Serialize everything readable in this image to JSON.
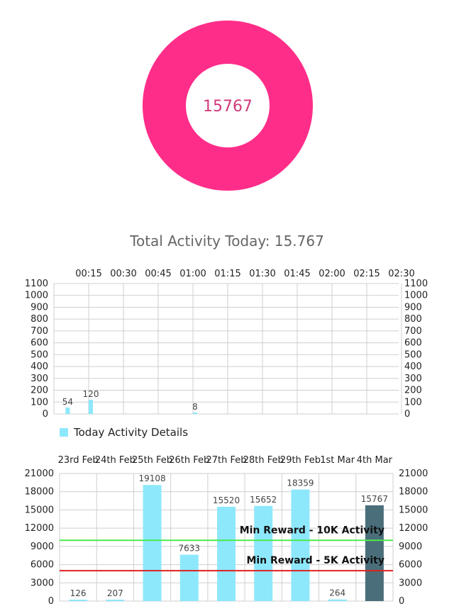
{
  "donut": {
    "value": "15767",
    "color": "#ff2d8a",
    "text_color": "#d03a7a"
  },
  "summary": {
    "total_text": "Total Activity Today: 15.767"
  },
  "chart_data": [
    {
      "type": "bar",
      "x": [
        "00:15",
        "00:30",
        "00:45",
        "01:00",
        "01:15",
        "01:30",
        "01:45",
        "02:00",
        "02:15",
        "02:30"
      ],
      "series": [
        {
          "name": "Today Activity Details",
          "points": [
            {
              "t": "00:05",
              "value": 54
            },
            {
              "t": "00:15",
              "value": 120
            },
            {
              "t": "01:00",
              "value": 8
            }
          ]
        }
      ],
      "ylim": [
        0,
        1100
      ],
      "yticks": [
        0,
        100,
        200,
        300,
        400,
        500,
        600,
        700,
        800,
        900,
        1000,
        1100
      ],
      "bar_color": "#8ee8fb",
      "legend": "bottom-left",
      "grid": true
    },
    {
      "type": "bar",
      "categories": [
        "23rd Feb",
        "24th Feb",
        "25th Feb",
        "26th Feb",
        "27th Feb",
        "28th Feb",
        "29th Feb",
        "1st Mar",
        "4th Mar"
      ],
      "values": [
        126,
        207,
        19108,
        7633,
        15520,
        15652,
        18359,
        264,
        15767
      ],
      "ylim": [
        0,
        21000
      ],
      "yticks": [
        0,
        3000,
        6000,
        9000,
        12000,
        15000,
        18000,
        21000
      ],
      "bar_color": "#8ee8fb",
      "highlight_color": "#4a6f7a",
      "highlight_index": 8,
      "grid": true,
      "reference_lines": [
        {
          "label": "Min Reward - 10K Activity",
          "value": 10000,
          "color": "#4cea4c"
        },
        {
          "label": "Min Reward - 5K Activity",
          "value": 5000,
          "color": "#e02020"
        }
      ]
    }
  ]
}
